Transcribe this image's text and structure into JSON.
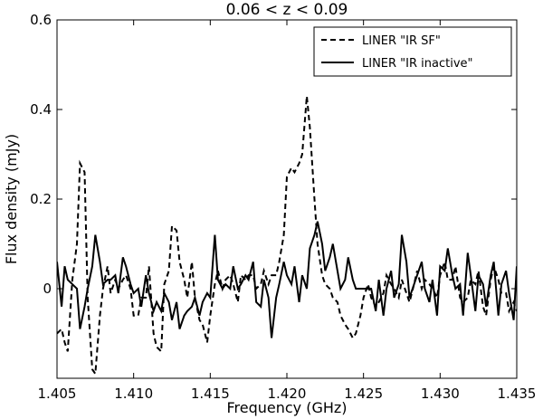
{
  "chart_data": {
    "type": "line",
    "title": "0.06  < z < 0.09",
    "xlabel": "Frequency (GHz)",
    "ylabel": "Flux density (mJy)",
    "xlim": [
      1.405,
      1.435
    ],
    "ylim": [
      -0.2,
      0.6
    ],
    "xticks": [
      1.405,
      1.41,
      1.415,
      1.42,
      1.425,
      1.43,
      1.435
    ],
    "xtick_labels": [
      "1.405",
      "1.410",
      "1.415",
      "1.420",
      "1.425",
      "1.430",
      "1.435"
    ],
    "yticks": [
      0,
      0.2,
      0.4,
      0.6
    ],
    "ytick_labels": [
      "0",
      "0.2",
      "0.4",
      "0.6"
    ],
    "grid": false,
    "legend_position": "top-right",
    "series": [
      {
        "name": "LINER \"IR SF\"",
        "style": "dashed",
        "color": "#000000",
        "x": [
          1.405,
          1.4053,
          1.4055,
          1.4057,
          1.406,
          1.4063,
          1.4065,
          1.4068,
          1.407,
          1.4073,
          1.4075,
          1.4078,
          1.408,
          1.4083,
          1.4085,
          1.4088,
          1.409,
          1.4093,
          1.4095,
          1.4098,
          1.41,
          1.4103,
          1.4105,
          1.4108,
          1.411,
          1.4113,
          1.4115,
          1.4118,
          1.412,
          1.4123,
          1.4125,
          1.4128,
          1.413,
          1.4133,
          1.4135,
          1.4138,
          1.414,
          1.4143,
          1.4145,
          1.4148,
          1.415,
          1.4153,
          1.4155,
          1.4158,
          1.416,
          1.4163,
          1.4165,
          1.4168,
          1.417,
          1.4173,
          1.4175,
          1.4178,
          1.418,
          1.4183,
          1.4185,
          1.4188,
          1.419,
          1.4193,
          1.4195,
          1.4198,
          1.42,
          1.4203,
          1.4205,
          1.4208,
          1.421,
          1.4213,
          1.4215,
          1.4218,
          1.422,
          1.4223,
          1.4225,
          1.4228,
          1.423,
          1.4233,
          1.4235,
          1.4238,
          1.424,
          1.4243,
          1.4245,
          1.4248,
          1.425,
          1.4253,
          1.4255,
          1.4258,
          1.426,
          1.4263,
          1.4265,
          1.4268,
          1.427,
          1.4273,
          1.4275,
          1.4278,
          1.428,
          1.4283,
          1.4285,
          1.4288,
          1.429,
          1.4293,
          1.4295,
          1.4298,
          1.43,
          1.4303,
          1.4305,
          1.4308,
          1.431,
          1.4313,
          1.4315,
          1.4318,
          1.432,
          1.4323,
          1.4325,
          1.4328,
          1.433,
          1.4333,
          1.4335,
          1.4338,
          1.434,
          1.4343,
          1.4345,
          1.4348,
          1.435
        ],
        "y": [
          -0.1,
          -0.09,
          -0.12,
          -0.14,
          0.02,
          0.1,
          0.28,
          0.26,
          -0.02,
          -0.18,
          -0.19,
          -0.06,
          0.0,
          0.05,
          -0.01,
          0.02,
          0.0,
          0.02,
          0.03,
          0.0,
          -0.06,
          -0.06,
          -0.02,
          -0.02,
          0.05,
          -0.1,
          -0.13,
          -0.14,
          0.01,
          0.04,
          0.14,
          0.13,
          0.06,
          0.02,
          -0.02,
          0.06,
          -0.02,
          -0.07,
          -0.08,
          -0.12,
          -0.06,
          0.01,
          0.04,
          0.0,
          0.02,
          0.03,
          0.01,
          -0.03,
          0.03,
          0.02,
          0.03,
          0.03,
          0.0,
          0.01,
          0.04,
          0.01,
          0.03,
          0.03,
          0.06,
          0.12,
          0.25,
          0.27,
          0.26,
          0.28,
          0.3,
          0.43,
          0.36,
          0.2,
          0.1,
          0.03,
          0.01,
          0.0,
          -0.02,
          -0.03,
          -0.06,
          -0.08,
          -0.09,
          -0.11,
          -0.1,
          -0.06,
          -0.02,
          0.01,
          -0.02,
          -0.04,
          -0.03,
          -0.01,
          0.03,
          0.01,
          0.0,
          -0.02,
          0.02,
          -0.01,
          -0.03,
          0.01,
          0.04,
          0.0,
          0.02,
          0.01,
          0.0,
          -0.02,
          0.03,
          0.06,
          0.02,
          0.02,
          0.05,
          -0.02,
          -0.03,
          -0.02,
          0.02,
          0.01,
          0.04,
          -0.04,
          -0.06,
          0.02,
          0.05,
          0.02,
          -0.01,
          -0.01,
          -0.05,
          -0.03,
          -0.05
        ]
      },
      {
        "name": "LINER \"IR inactive\"",
        "style": "solid",
        "color": "#000000",
        "x": [
          1.405,
          1.4053,
          1.4055,
          1.4057,
          1.406,
          1.4063,
          1.4065,
          1.4068,
          1.407,
          1.4073,
          1.4075,
          1.4078,
          1.408,
          1.4083,
          1.4085,
          1.4088,
          1.409,
          1.4093,
          1.4095,
          1.4098,
          1.41,
          1.4103,
          1.4105,
          1.4108,
          1.411,
          1.4113,
          1.4115,
          1.4118,
          1.412,
          1.4123,
          1.4125,
          1.4128,
          1.413,
          1.4133,
          1.4135,
          1.4138,
          1.414,
          1.4143,
          1.4145,
          1.4148,
          1.415,
          1.4153,
          1.4155,
          1.4158,
          1.416,
          1.4163,
          1.4165,
          1.4168,
          1.417,
          1.4173,
          1.4175,
          1.4178,
          1.418,
          1.4183,
          1.4185,
          1.4188,
          1.419,
          1.4193,
          1.4195,
          1.4198,
          1.42,
          1.4203,
          1.4205,
          1.4208,
          1.421,
          1.4213,
          1.4215,
          1.4218,
          1.422,
          1.4223,
          1.4225,
          1.4228,
          1.423,
          1.4233,
          1.4235,
          1.4238,
          1.424,
          1.4243,
          1.4245,
          1.4248,
          1.425,
          1.4253,
          1.4255,
          1.4258,
          1.426,
          1.4263,
          1.4265,
          1.4268,
          1.427,
          1.4273,
          1.4275,
          1.4278,
          1.428,
          1.4283,
          1.4285,
          1.4288,
          1.429,
          1.4293,
          1.4295,
          1.4298,
          1.43,
          1.4303,
          1.4305,
          1.4308,
          1.431,
          1.4313,
          1.4315,
          1.4318,
          1.432,
          1.4323,
          1.4325,
          1.4328,
          1.433,
          1.4333,
          1.4335,
          1.4338,
          1.434,
          1.4343,
          1.4345,
          1.4348,
          1.435
        ],
        "y": [
          0.06,
          -0.04,
          0.05,
          0.02,
          0.01,
          0.0,
          -0.09,
          -0.04,
          0.0,
          0.05,
          0.12,
          0.06,
          0.01,
          0.02,
          0.02,
          0.03,
          -0.01,
          0.07,
          0.05,
          0.01,
          -0.01,
          0.0,
          -0.04,
          0.03,
          -0.01,
          -0.05,
          -0.03,
          -0.05,
          -0.01,
          -0.03,
          -0.07,
          -0.03,
          -0.09,
          -0.06,
          -0.05,
          -0.04,
          -0.02,
          -0.06,
          -0.03,
          -0.01,
          -0.02,
          0.12,
          0.02,
          0.0,
          0.01,
          0.0,
          0.05,
          0.0,
          0.01,
          0.03,
          0.02,
          0.06,
          -0.03,
          -0.04,
          0.02,
          -0.02,
          -0.11,
          -0.02,
          0.01,
          0.06,
          0.03,
          0.01,
          0.05,
          -0.03,
          0.03,
          0.0,
          0.09,
          0.12,
          0.15,
          0.1,
          0.04,
          0.07,
          0.1,
          0.04,
          0.0,
          0.02,
          0.07,
          0.02,
          0.0,
          0.0,
          0.0,
          0.0,
          0.0,
          -0.05,
          0.02,
          -0.06,
          0.0,
          0.04,
          -0.02,
          0.01,
          0.12,
          0.06,
          -0.02,
          0.01,
          0.03,
          0.06,
          0.0,
          -0.03,
          0.02,
          -0.06,
          0.05,
          0.04,
          0.09,
          0.03,
          0.0,
          0.01,
          -0.06,
          0.08,
          0.03,
          -0.05,
          0.03,
          0.01,
          -0.04,
          0.03,
          0.06,
          -0.06,
          0.01,
          0.04,
          -0.01,
          -0.07,
          0.05
        ]
      }
    ]
  }
}
